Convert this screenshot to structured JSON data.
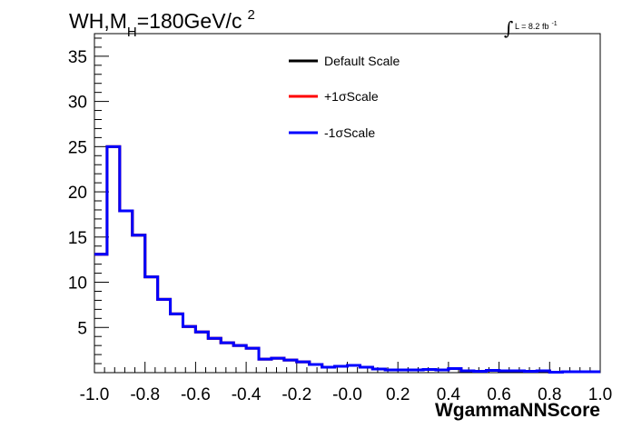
{
  "chart_data": {
    "type": "line",
    "title": "WH,M",
    "title_subscript": "H",
    "title_rest": "=180GeV/c",
    "title_superscript": "2",
    "luminosity_label": "L = 8.2 fb",
    "luminosity_superscript": "-1",
    "xlabel": "WgammaNNScore",
    "xlim": [
      -1.0,
      1.0
    ],
    "ylim": [
      0,
      37.5
    ],
    "x_ticks": [
      "-1.0",
      "-0.8",
      "-0.6",
      "-0.4",
      "-0.2",
      "-0.0",
      "0.2",
      "0.4",
      "0.6",
      "0.8",
      "1.0"
    ],
    "y_ticks": [
      "5",
      "10",
      "15",
      "20",
      "25",
      "30",
      "35"
    ],
    "legend_position": "top-center",
    "bin_edges": [
      -1.0,
      -0.95,
      -0.9,
      -0.85,
      -0.8,
      -0.75,
      -0.7,
      -0.65,
      -0.6,
      -0.55,
      -0.5,
      -0.45,
      -0.4,
      -0.35,
      -0.3,
      -0.25,
      -0.2,
      -0.15,
      -0.1,
      -0.05,
      0.0,
      0.05,
      0.1,
      0.15,
      0.2,
      0.25,
      0.3,
      0.35,
      0.4,
      0.45,
      0.5,
      0.55,
      0.6,
      0.65,
      0.7,
      0.75,
      0.8,
      0.85,
      0.9,
      0.95,
      1.0
    ],
    "series": [
      {
        "name": "Default Scale",
        "color": "#000000",
        "values": [
          13.1,
          25.0,
          17.9,
          15.2,
          10.6,
          8.1,
          6.5,
          5.1,
          4.5,
          3.8,
          3.3,
          3.0,
          2.7,
          1.5,
          1.6,
          1.4,
          1.2,
          0.9,
          0.6,
          0.7,
          0.8,
          0.6,
          0.4,
          0.3,
          0.3,
          0.3,
          0.35,
          0.3,
          0.45,
          0.2,
          0.15,
          0.25,
          0.2,
          0.2,
          0.15,
          0.2,
          0.05,
          0.1,
          0.1,
          0.1
        ]
      },
      {
        "name": "+1σScale",
        "color": "#ff0000",
        "values": [
          13.1,
          25.0,
          17.9,
          15.2,
          10.6,
          8.1,
          6.5,
          5.1,
          4.5,
          3.8,
          3.3,
          3.0,
          2.7,
          1.5,
          1.6,
          1.4,
          1.2,
          0.9,
          0.6,
          0.7,
          0.8,
          0.6,
          0.4,
          0.3,
          0.3,
          0.3,
          0.35,
          0.3,
          0.45,
          0.2,
          0.15,
          0.25,
          0.2,
          0.2,
          0.15,
          0.2,
          0.05,
          0.1,
          0.1,
          0.1
        ]
      },
      {
        "name": "-1σScale",
        "color": "#0000ff",
        "values": [
          13.1,
          25.0,
          17.9,
          15.2,
          10.6,
          8.1,
          6.5,
          5.1,
          4.5,
          3.8,
          3.3,
          3.0,
          2.7,
          1.5,
          1.6,
          1.4,
          1.2,
          0.9,
          0.6,
          0.7,
          0.8,
          0.6,
          0.4,
          0.3,
          0.3,
          0.3,
          0.35,
          0.3,
          0.45,
          0.2,
          0.15,
          0.25,
          0.2,
          0.2,
          0.15,
          0.2,
          0.05,
          0.1,
          0.1,
          0.1
        ]
      }
    ]
  }
}
